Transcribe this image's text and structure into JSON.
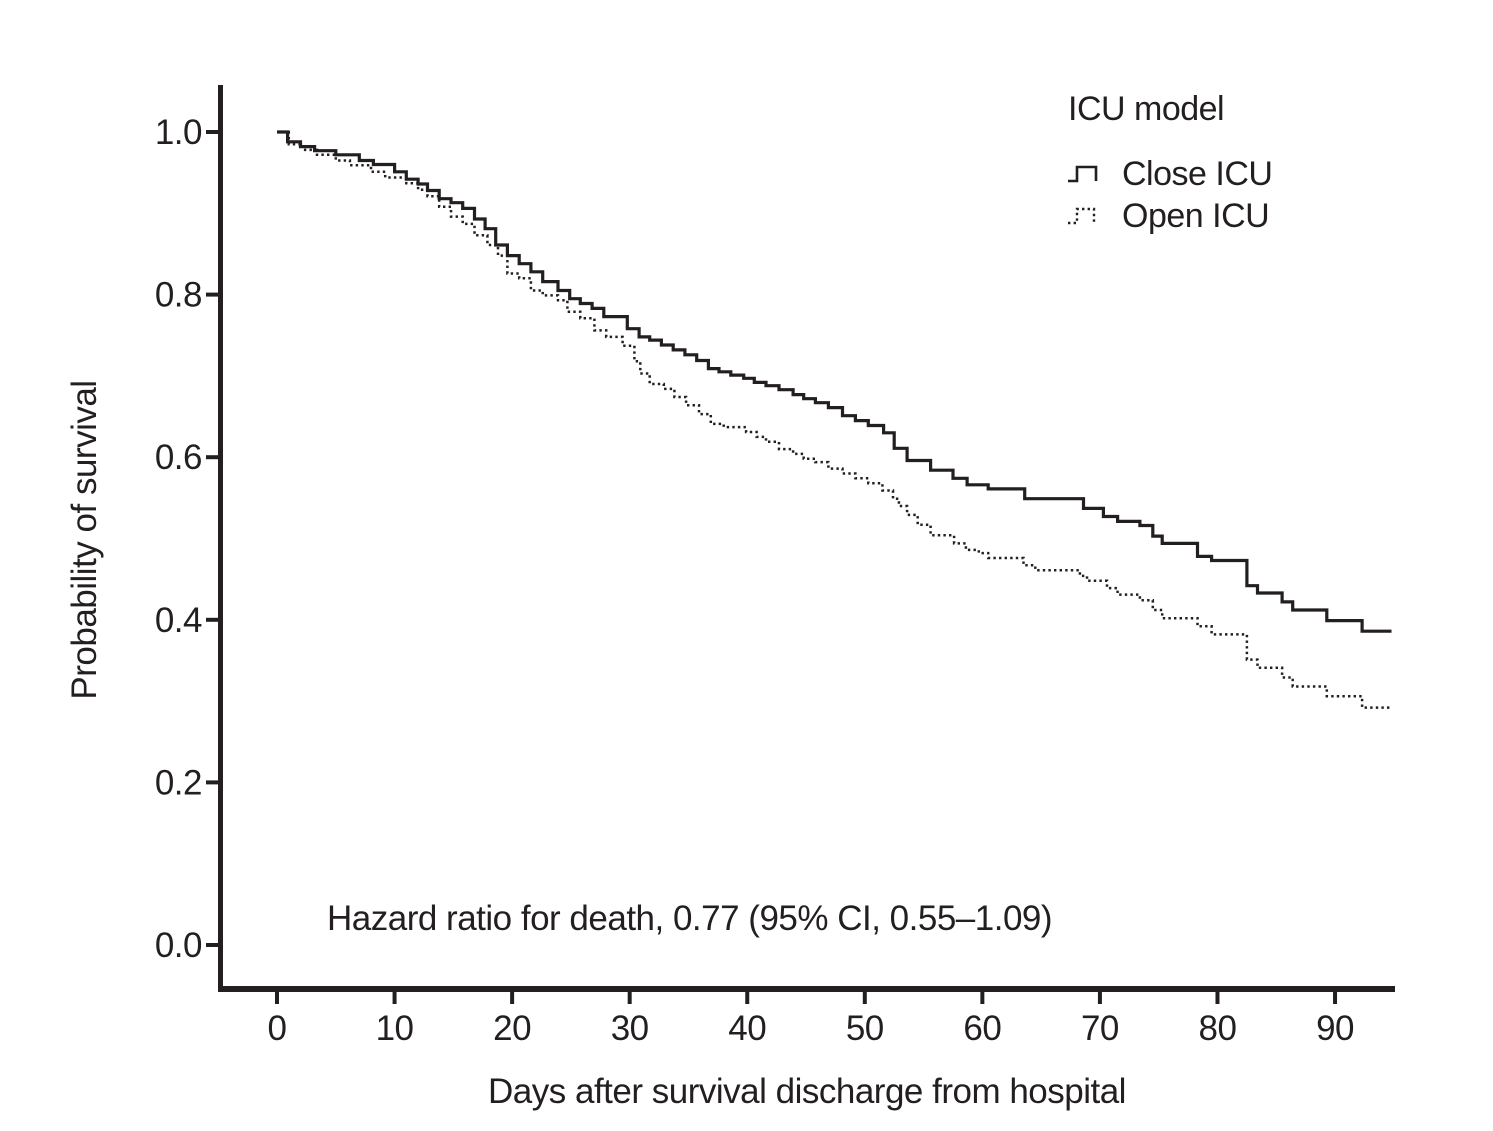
{
  "figure": {
    "annotation": "Hazard ratio for death, 0.77 (95% CI, 0.55–1.09)",
    "legend": {
      "title": "ICU model",
      "items": [
        {
          "label": "Close ICU",
          "style": "solid"
        },
        {
          "label": "Open ICU",
          "style": "dotted"
        }
      ]
    }
  },
  "chart_data": {
    "type": "line",
    "subtype": "kaplan-meier-step",
    "title": "",
    "xlabel": "Days after survival discharge from hospital",
    "ylabel": "Probability of survival",
    "xlim": [
      -5,
      95
    ],
    "ylim": [
      -0.05,
      1.05
    ],
    "grid": false,
    "legend_position": "top-right",
    "line_color": "#231f20",
    "x_ticks": [
      {
        "value": 0,
        "label": "0"
      },
      {
        "value": 10,
        "label": "10"
      },
      {
        "value": 20,
        "label": "20"
      },
      {
        "value": 30,
        "label": "30"
      },
      {
        "value": 40,
        "label": "40"
      },
      {
        "value": 50,
        "label": "50"
      },
      {
        "value": 60,
        "label": "60"
      },
      {
        "value": 70,
        "label": "70"
      },
      {
        "value": 80,
        "label": "80"
      },
      {
        "value": 90,
        "label": "90"
      }
    ],
    "y_ticks": [
      {
        "value": 1.0,
        "label": "1.0"
      },
      {
        "value": 0.8,
        "label": "0.8"
      },
      {
        "value": 0.6,
        "label": "0.6"
      },
      {
        "value": 0.4,
        "label": "0.4"
      },
      {
        "value": 0.2,
        "label": "0.2"
      },
      {
        "value": 0.0,
        "label": "0.0"
      }
    ],
    "series": [
      {
        "name": "Close ICU",
        "style": "solid",
        "points": [
          [
            0,
            1.0
          ],
          [
            0.9,
            0.988
          ],
          [
            2,
            0.982
          ],
          [
            3.2,
            0.977
          ],
          [
            5,
            0.972
          ],
          [
            7,
            0.965
          ],
          [
            8.2,
            0.96
          ],
          [
            10,
            0.951
          ],
          [
            11,
            0.942
          ],
          [
            12,
            0.936
          ],
          [
            12.8,
            0.928
          ],
          [
            13.8,
            0.918
          ],
          [
            14.8,
            0.913
          ],
          [
            15.8,
            0.906
          ],
          [
            16.8,
            0.893
          ],
          [
            17.7,
            0.881
          ],
          [
            18.6,
            0.861
          ],
          [
            19.6,
            0.848
          ],
          [
            20.6,
            0.838
          ],
          [
            21.6,
            0.828
          ],
          [
            22.6,
            0.816
          ],
          [
            23.9,
            0.805
          ],
          [
            24.9,
            0.795
          ],
          [
            25.8,
            0.789
          ],
          [
            26.8,
            0.783
          ],
          [
            27.8,
            0.773
          ],
          [
            29.8,
            0.758
          ],
          [
            30.8,
            0.748
          ],
          [
            31.7,
            0.744
          ],
          [
            32.7,
            0.738
          ],
          [
            33.7,
            0.732
          ],
          [
            34.7,
            0.726
          ],
          [
            35.7,
            0.719
          ],
          [
            36.7,
            0.709
          ],
          [
            37.6,
            0.705
          ],
          [
            38.6,
            0.701
          ],
          [
            39.7,
            0.697
          ],
          [
            40.6,
            0.692
          ],
          [
            41.6,
            0.688
          ],
          [
            42.7,
            0.683
          ],
          [
            43.9,
            0.677
          ],
          [
            44.8,
            0.672
          ],
          [
            45.8,
            0.667
          ],
          [
            46.9,
            0.661
          ],
          [
            48.1,
            0.651
          ],
          [
            49.2,
            0.645
          ],
          [
            50.3,
            0.639
          ],
          [
            51.6,
            0.63
          ],
          [
            52.5,
            0.611
          ],
          [
            53.6,
            0.596
          ],
          [
            55.6,
            0.584
          ],
          [
            57.5,
            0.574
          ],
          [
            58.7,
            0.566
          ],
          [
            60.5,
            0.561
          ],
          [
            63.6,
            0.549
          ],
          [
            68.6,
            0.537
          ],
          [
            70.3,
            0.527
          ],
          [
            71.5,
            0.521
          ],
          [
            73.4,
            0.516
          ],
          [
            74.5,
            0.503
          ],
          [
            75.3,
            0.494
          ],
          [
            78.3,
            0.478
          ],
          [
            79.5,
            0.473
          ],
          [
            82.5,
            0.442
          ],
          [
            83.4,
            0.433
          ],
          [
            85.5,
            0.422
          ],
          [
            86.4,
            0.412
          ],
          [
            89.3,
            0.399
          ],
          [
            92.3,
            0.386
          ],
          [
            94.8,
            0.386
          ]
        ]
      },
      {
        "name": "Open ICU",
        "style": "dotted",
        "points": [
          [
            0,
            1.0
          ],
          [
            1,
            0.985
          ],
          [
            2.2,
            0.978
          ],
          [
            3.4,
            0.972
          ],
          [
            5,
            0.965
          ],
          [
            6.2,
            0.959
          ],
          [
            8,
            0.951
          ],
          [
            9.2,
            0.944
          ],
          [
            11,
            0.937
          ],
          [
            12,
            0.929
          ],
          [
            12.8,
            0.921
          ],
          [
            13.8,
            0.908
          ],
          [
            14.8,
            0.896
          ],
          [
            15.8,
            0.887
          ],
          [
            16.8,
            0.873
          ],
          [
            17.9,
            0.861
          ],
          [
            18.8,
            0.848
          ],
          [
            19.6,
            0.826
          ],
          [
            20.6,
            0.82
          ],
          [
            21.6,
            0.805
          ],
          [
            22.6,
            0.799
          ],
          [
            23.9,
            0.793
          ],
          [
            24.7,
            0.779
          ],
          [
            25.8,
            0.771
          ],
          [
            27,
            0.756
          ],
          [
            28,
            0.748
          ],
          [
            29.4,
            0.737
          ],
          [
            30.4,
            0.718
          ],
          [
            30.9,
            0.703
          ],
          [
            31.7,
            0.69
          ],
          [
            32.9,
            0.684
          ],
          [
            33.8,
            0.674
          ],
          [
            34.8,
            0.664
          ],
          [
            35.9,
            0.653
          ],
          [
            36.9,
            0.641
          ],
          [
            38,
            0.637
          ],
          [
            39.9,
            0.631
          ],
          [
            40.8,
            0.625
          ],
          [
            41.6,
            0.619
          ],
          [
            42.7,
            0.61
          ],
          [
            43.9,
            0.604
          ],
          [
            44.8,
            0.598
          ],
          [
            45.8,
            0.594
          ],
          [
            46.9,
            0.586
          ],
          [
            48.1,
            0.58
          ],
          [
            49.2,
            0.574
          ],
          [
            50.3,
            0.568
          ],
          [
            51.5,
            0.559
          ],
          [
            52.4,
            0.549
          ],
          [
            52.9,
            0.54
          ],
          [
            53.6,
            0.529
          ],
          [
            54.5,
            0.517
          ],
          [
            55.6,
            0.504
          ],
          [
            57.6,
            0.494
          ],
          [
            58.6,
            0.486
          ],
          [
            59.7,
            0.482
          ],
          [
            60.5,
            0.476
          ],
          [
            63.5,
            0.467
          ],
          [
            64.5,
            0.461
          ],
          [
            68.3,
            0.454
          ],
          [
            68.9,
            0.448
          ],
          [
            70.6,
            0.439
          ],
          [
            71.5,
            0.431
          ],
          [
            73.4,
            0.424
          ],
          [
            74.5,
            0.412
          ],
          [
            75.3,
            0.402
          ],
          [
            78.3,
            0.392
          ],
          [
            79.5,
            0.382
          ],
          [
            82.5,
            0.351
          ],
          [
            83.4,
            0.341
          ],
          [
            85.5,
            0.329
          ],
          [
            86.4,
            0.318
          ],
          [
            89.3,
            0.306
          ],
          [
            92.3,
            0.292
          ],
          [
            94.7,
            0.292
          ]
        ]
      }
    ]
  }
}
